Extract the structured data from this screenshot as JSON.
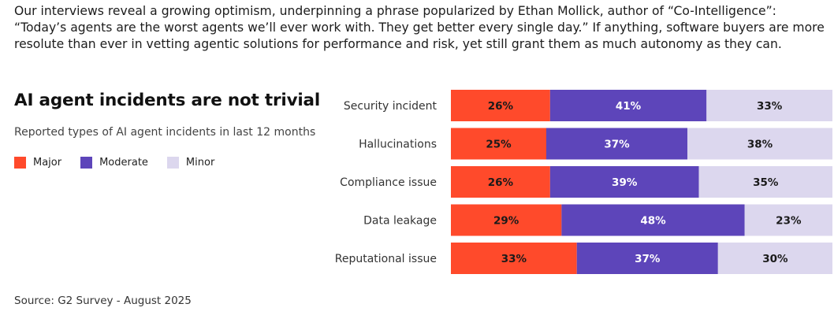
{
  "intro": {
    "text": "Our interviews reveal a growing optimism, underpinning a phrase popularized by Ethan Mollick, author of “Co-Intelligence”: “Today’s agents are the worst agents we’ll ever work with. They get better every single day.” If anything, software buyers are more resolute than ever in vetting agentic solutions for performance and risk, yet still grant them as much autonomy as they can."
  },
  "chart": {
    "title": "AI agent incidents are not trivial",
    "subtitle": "Reported types of AI agent incidents in last 12 months"
  },
  "source": "Source: G2 Survey - August 2025",
  "colors": {
    "major": "#ff4a2b",
    "moderate": "#5d45ba",
    "minor": "#dcd7ee",
    "major_text": "#1a1a1a",
    "moderate_text": "#ffffff",
    "minor_text": "#1a1a1a"
  },
  "legend": [
    {
      "name": "Major",
      "color_key": "major"
    },
    {
      "name": "Moderate",
      "color_key": "moderate"
    },
    {
      "name": "Minor",
      "color_key": "minor"
    }
  ],
  "chart_data": {
    "type": "bar",
    "orientation": "horizontal",
    "stacked": true,
    "title": "AI agent incidents are not trivial",
    "subtitle": "Reported types of AI agent incidents in last 12 months",
    "categories": [
      "Security incident",
      "Hallucinations",
      "Compliance issue",
      "Data leakage",
      "Reputational issue"
    ],
    "series": [
      {
        "name": "Major",
        "values": [
          26,
          25,
          26,
          29,
          33
        ]
      },
      {
        "name": "Moderate",
        "values": [
          41,
          37,
          39,
          48,
          37
        ]
      },
      {
        "name": "Minor",
        "values": [
          33,
          38,
          35,
          23,
          30
        ]
      }
    ],
    "unit": "%",
    "xlim": [
      0,
      100
    ],
    "legend_position": "left",
    "grid": false
  }
}
